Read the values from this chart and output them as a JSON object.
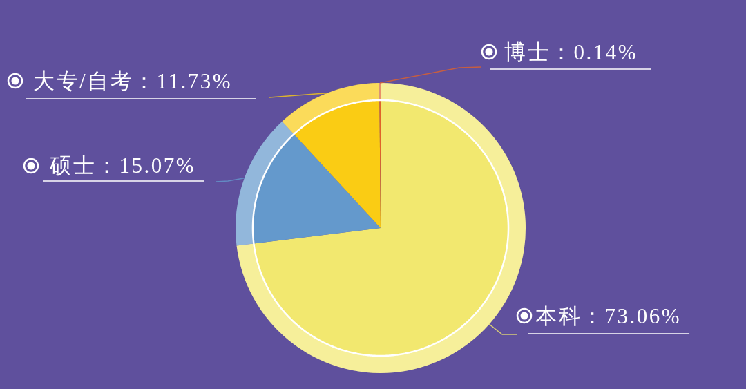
{
  "chart_data": {
    "type": "pie",
    "categories": [
      "本科",
      "硕士",
      "大专/自考",
      "博士"
    ],
    "values": [
      73.06,
      15.07,
      11.73,
      0.14
    ],
    "colors": [
      "#f2e86f",
      "#6499cc",
      "#facc14",
      "#e0622a"
    ],
    "value_labels": [
      "73.06%",
      "15.07%",
      "11.73%",
      "0.14%"
    ]
  }
}
